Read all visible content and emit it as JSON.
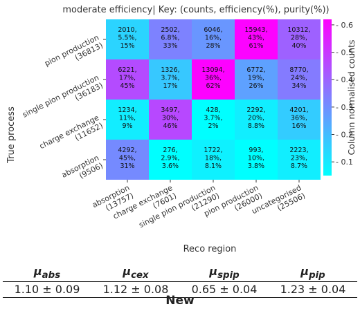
{
  "chart_data": {
    "type": "heatmap",
    "title": "moderate efficiency| Key: (counts, efficiency(%), purity(%))",
    "xlabel": "Reco region",
    "ylabel": "True process",
    "colorbar_label": "Column normalised counts",
    "colorbar_range": [
      0.05,
      0.62
    ],
    "colorbar_ticks": [
      "0.1",
      "0.2",
      "0.3",
      "0.4",
      "0.5",
      "0.6"
    ],
    "colorbar_tick_values": [
      0.1,
      0.2,
      0.3,
      0.4,
      0.5,
      0.6
    ],
    "colormap": [
      "#00ffff",
      "#ff00ff"
    ],
    "x_categories": [
      {
        "name": "absorption",
        "total": "(13757)"
      },
      {
        "name": "charge exchange",
        "total": "(7601)"
      },
      {
        "name": "single pion production",
        "total": "(21290)"
      },
      {
        "name": "pion production",
        "total": "(26000)"
      },
      {
        "name": "uncategorised",
        "total": "(25506)"
      }
    ],
    "y_categories": [
      {
        "name": "pion production",
        "total": "(36813)"
      },
      {
        "name": "single pion production",
        "total": "(36183)"
      },
      {
        "name": "charge exchange",
        "total": "(11652)"
      },
      {
        "name": "absorption",
        "total": "(9506)"
      }
    ],
    "cells": [
      [
        {
          "lines": [
            "2010,",
            "5.5%,",
            "15%"
          ],
          "value": 0.146
        },
        {
          "lines": [
            "2502,",
            "6.8%,",
            "33%"
          ],
          "value": 0.329
        },
        {
          "lines": [
            "6046,",
            "16%,",
            "28%"
          ],
          "value": 0.284
        },
        {
          "lines": [
            "15943,",
            "43%,",
            "61%"
          ],
          "value": 0.613
        },
        {
          "lines": [
            "10312,",
            "28%,",
            "40%"
          ],
          "value": 0.404
        }
      ],
      [
        {
          "lines": [
            "6221,",
            "17%,",
            "45%"
          ],
          "value": 0.452
        },
        {
          "lines": [
            "1326,",
            "3.7%,",
            "17%"
          ],
          "value": 0.174
        },
        {
          "lines": [
            "13094,",
            "36%,",
            "62%"
          ],
          "value": 0.615
        },
        {
          "lines": [
            "6772,",
            "19%,",
            "26%"
          ],
          "value": 0.26
        },
        {
          "lines": [
            "8770,",
            "24%,",
            "34%"
          ],
          "value": 0.344
        }
      ],
      [
        {
          "lines": [
            "1234,",
            "11%,",
            "9%"
          ],
          "value": 0.09
        },
        {
          "lines": [
            "3497,",
            "30%,",
            "46%"
          ],
          "value": 0.46
        },
        {
          "lines": [
            "428,",
            "3.7%,",
            "2%"
          ],
          "value": 0.02
        },
        {
          "lines": [
            "2292,",
            "20%,",
            "8.8%"
          ],
          "value": 0.088
        },
        {
          "lines": [
            "4201,",
            "36%,",
            "16%"
          ],
          "value": 0.165
        }
      ],
      [
        {
          "lines": [
            "4292,",
            "45%,",
            "31%"
          ],
          "value": 0.312
        },
        {
          "lines": [
            "276,",
            "2.9%,",
            "3.6%"
          ],
          "value": 0.036
        },
        {
          "lines": [
            "1722,",
            "18%,",
            "8.1%"
          ],
          "value": 0.081
        },
        {
          "lines": [
            "993,",
            "10%,",
            "3.8%"
          ],
          "value": 0.038
        },
        {
          "lines": [
            "2223,",
            "23%,",
            "8.7%"
          ],
          "value": 0.087
        }
      ]
    ]
  },
  "results_table": {
    "headers": [
      {
        "mu": "μ",
        "sub": "abs"
      },
      {
        "mu": "μ",
        "sub": "cex"
      },
      {
        "mu": "μ",
        "sub": "spip"
      },
      {
        "mu": "μ",
        "sub": "pip"
      }
    ],
    "values": [
      "1.10 ± 0.09",
      "1.12 ± 0.08",
      "0.65 ± 0.04",
      "1.23 ± 0.04"
    ]
  },
  "caption": "New"
}
